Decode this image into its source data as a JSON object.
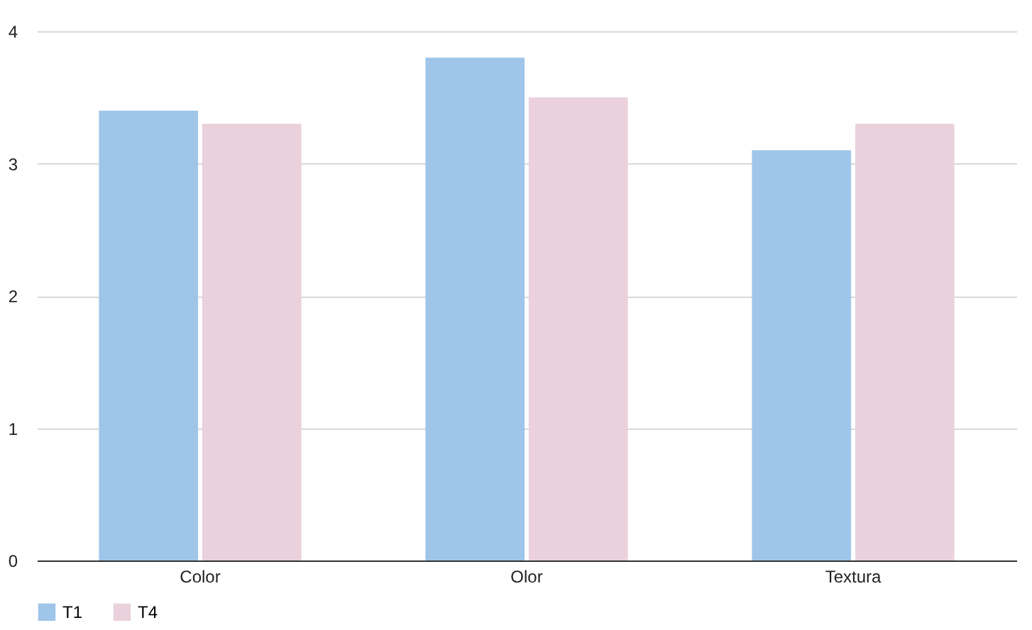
{
  "chart_data": {
    "type": "bar",
    "categories": [
      "Color",
      "Olor",
      "Textura"
    ],
    "series": [
      {
        "name": "T1",
        "color": "#9fc5e8",
        "values": [
          3.4,
          3.8,
          3.1
        ]
      },
      {
        "name": "T4",
        "color": "#ead1dc",
        "values": [
          3.3,
          3.5,
          3.3
        ]
      }
    ],
    "ylim": [
      0,
      4
    ],
    "yticks": [
      0,
      1,
      2,
      3,
      4
    ],
    "grid": "y",
    "legend": "bottom"
  }
}
